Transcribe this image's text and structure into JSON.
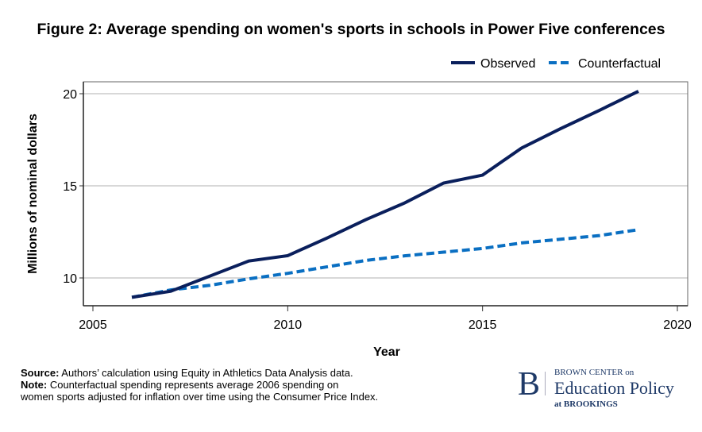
{
  "chart_data": {
    "type": "line",
    "title": "Figure 2: Average spending on women's sports in schools in Power Five conferences",
    "xlabel": "Year",
    "ylabel": "Millions of nominal dollars",
    "xlim": [
      2005,
      2020
    ],
    "ylim": [
      8.5,
      21
    ],
    "xticks": [
      2005,
      2010,
      2015,
      2020
    ],
    "yticks": [
      10,
      15,
      20
    ],
    "grid": "horizontal",
    "legend_position": "top-right",
    "x": [
      2006,
      2007,
      2008,
      2009,
      2010,
      2011,
      2012,
      2013,
      2014,
      2015,
      2016,
      2017,
      2018,
      2019
    ],
    "series": [
      {
        "name": "Observed",
        "color": "#0a1f5c",
        "style": "solid",
        "values": [
          8.95,
          9.28,
          10.1,
          10.92,
          11.21,
          12.16,
          13.16,
          14.07,
          15.15,
          15.58,
          17.05,
          18.1,
          19.1,
          20.13
        ]
      },
      {
        "name": "Counterfactual",
        "color": "#0a6fc2",
        "style": "dashed",
        "values": [
          8.95,
          9.35,
          9.6,
          9.95,
          10.25,
          10.6,
          10.95,
          11.2,
          11.4,
          11.6,
          11.9,
          12.1,
          12.3,
          12.62
        ]
      }
    ]
  },
  "notes": {
    "source_label": "Source:",
    "source_text": " Authors’ calculation using Equity in Athletics Data Analysis data.",
    "note_label": "Note:",
    "note_text": " Counterfactual spending represents average 2006 spending on",
    "note_text2": "women sports adjusted for inflation over time using the Consumer Price Index."
  },
  "logo": {
    "letter": "B",
    "line1": "BROWN CENTER on",
    "line2": "Education Policy",
    "line3": "at BROOKINGS"
  }
}
